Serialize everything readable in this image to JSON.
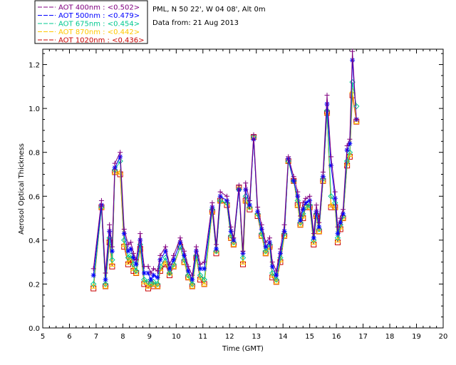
{
  "header": {
    "location": "PML, N 50 22', W 04 08', Alt 0m",
    "date": "Data from: 21 Aug 2013"
  },
  "chart_data": {
    "type": "line",
    "title": "",
    "xlabel": "Time (GMT)",
    "ylabel": "Aerosol Optical Thickness",
    "xlim": [
      5,
      20
    ],
    "ylim": [
      0.0,
      1.27
    ],
    "xticks": [
      "5",
      "6",
      "7",
      "8",
      "9",
      "10",
      "11",
      "12",
      "13",
      "14",
      "15",
      "16",
      "17",
      "18",
      "19",
      "20"
    ],
    "yticks": [
      "0.0",
      "0.2",
      "0.4",
      "0.6",
      "0.8",
      "1.0",
      "1.2"
    ],
    "legend_position": "top-left",
    "x": [
      6.9,
      7.2,
      7.35,
      7.5,
      7.6,
      7.7,
      7.9,
      8.05,
      8.2,
      8.3,
      8.4,
      8.5,
      8.65,
      8.8,
      8.95,
      9.05,
      9.15,
      9.3,
      9.4,
      9.6,
      9.75,
      9.9,
      10.15,
      10.3,
      10.45,
      10.6,
      10.75,
      10.9,
      11.05,
      11.35,
      11.5,
      11.65,
      11.9,
      12.05,
      12.15,
      12.35,
      12.5,
      12.6,
      12.75,
      12.9,
      13.05,
      13.2,
      13.35,
      13.5,
      13.6,
      13.75,
      13.9,
      14.05,
      14.2,
      14.4,
      14.55,
      14.65,
      14.75,
      14.85,
      15.0,
      15.15,
      15.25,
      15.35,
      15.5,
      15.65,
      15.8,
      15.95,
      16.05,
      16.15,
      16.25,
      16.4,
      16.5,
      16.6,
      16.75
    ],
    "series": [
      {
        "name": "AOT  400nm : <0.502>",
        "color": "#800080",
        "marker": "plus",
        "values": [
          0.27,
          0.58,
          0.25,
          0.47,
          0.37,
          0.75,
          0.8,
          0.45,
          0.38,
          0.39,
          0.34,
          0.31,
          0.43,
          0.28,
          0.28,
          0.25,
          0.27,
          0.26,
          0.33,
          0.37,
          0.29,
          0.33,
          0.41,
          0.35,
          0.28,
          0.24,
          0.37,
          0.29,
          0.3,
          0.57,
          0.38,
          0.62,
          0.6,
          0.46,
          0.41,
          0.65,
          0.35,
          0.66,
          0.58,
          0.88,
          0.55,
          0.47,
          0.39,
          0.41,
          0.3,
          0.26,
          0.36,
          0.47,
          0.78,
          0.69,
          0.62,
          0.51,
          0.57,
          0.59,
          0.6,
          0.43,
          0.56,
          0.48,
          0.71,
          1.06,
          0.78,
          0.62,
          0.46,
          0.5,
          0.54,
          0.83,
          0.86,
          1.26,
          0.95
        ]
      },
      {
        "name": "AOT  500nm : <0.479>",
        "color": "#0000ff",
        "marker": "asterisk",
        "values": [
          0.24,
          0.56,
          0.22,
          0.44,
          0.35,
          0.73,
          0.78,
          0.43,
          0.35,
          0.36,
          0.32,
          0.29,
          0.4,
          0.25,
          0.25,
          0.22,
          0.24,
          0.23,
          0.31,
          0.35,
          0.27,
          0.31,
          0.39,
          0.33,
          0.26,
          0.22,
          0.35,
          0.27,
          0.27,
          0.55,
          0.36,
          0.6,
          0.58,
          0.44,
          0.4,
          0.63,
          0.34,
          0.63,
          0.56,
          0.86,
          0.53,
          0.45,
          0.37,
          0.39,
          0.28,
          0.24,
          0.34,
          0.44,
          0.77,
          0.67,
          0.6,
          0.49,
          0.54,
          0.57,
          0.58,
          0.41,
          0.53,
          0.46,
          0.69,
          1.02,
          0.74,
          0.59,
          0.43,
          0.48,
          0.52,
          0.81,
          0.84,
          1.22,
          0.95
        ]
      },
      {
        "name": "AOT  675nm : <0.454>",
        "color": "#00c890",
        "marker": "diamond",
        "values": [
          0.2,
          0.55,
          0.2,
          0.41,
          0.31,
          0.72,
          0.76,
          0.4,
          0.32,
          0.33,
          0.29,
          0.26,
          0.38,
          0.22,
          0.21,
          0.2,
          0.21,
          0.2,
          0.28,
          0.32,
          0.25,
          0.29,
          0.37,
          0.31,
          0.24,
          0.2,
          0.33,
          0.24,
          0.22,
          0.54,
          0.35,
          0.58,
          0.57,
          0.42,
          0.39,
          0.63,
          0.32,
          0.6,
          0.55,
          0.87,
          0.52,
          0.43,
          0.35,
          0.38,
          0.25,
          0.22,
          0.32,
          0.43,
          0.76,
          0.67,
          0.58,
          0.48,
          0.52,
          0.55,
          0.56,
          0.4,
          0.52,
          0.45,
          0.68,
          0.99,
          0.6,
          0.57,
          0.41,
          0.47,
          0.51,
          0.76,
          0.8,
          1.12,
          1.01
        ]
      },
      {
        "name": "AOT  870nm : <0.442>",
        "color": "#ffc800",
        "marker": "triangle",
        "values": [
          0.19,
          0.55,
          0.19,
          0.4,
          0.29,
          0.71,
          0.71,
          0.38,
          0.3,
          0.32,
          0.27,
          0.25,
          0.37,
          0.21,
          0.19,
          0.2,
          0.2,
          0.19,
          0.27,
          0.3,
          0.25,
          0.28,
          0.37,
          0.3,
          0.23,
          0.19,
          0.32,
          0.23,
          0.2,
          0.53,
          0.35,
          0.58,
          0.57,
          0.41,
          0.38,
          0.64,
          0.3,
          0.58,
          0.55,
          0.87,
          0.52,
          0.42,
          0.34,
          0.37,
          0.24,
          0.21,
          0.31,
          0.42,
          0.76,
          0.67,
          0.56,
          0.47,
          0.51,
          0.55,
          0.55,
          0.39,
          0.51,
          0.44,
          0.67,
          0.98,
          0.56,
          0.55,
          0.4,
          0.46,
          0.5,
          0.75,
          0.79,
          1.08,
          0.94
        ]
      },
      {
        "name": "AOT 1020nm : <0.436>",
        "color": "#c80000",
        "marker": "square",
        "values": [
          0.18,
          0.55,
          0.19,
          0.39,
          0.28,
          0.71,
          0.7,
          0.37,
          0.29,
          0.31,
          0.26,
          0.25,
          0.36,
          0.2,
          0.18,
          0.2,
          0.19,
          0.19,
          0.26,
          0.29,
          0.24,
          0.28,
          0.37,
          0.3,
          0.23,
          0.19,
          0.32,
          0.22,
          0.2,
          0.53,
          0.34,
          0.58,
          0.56,
          0.41,
          0.38,
          0.64,
          0.29,
          0.58,
          0.54,
          0.87,
          0.51,
          0.42,
          0.34,
          0.37,
          0.23,
          0.21,
          0.3,
          0.42,
          0.76,
          0.67,
          0.56,
          0.47,
          0.5,
          0.55,
          0.55,
          0.38,
          0.51,
          0.44,
          0.67,
          0.98,
          0.55,
          0.55,
          0.39,
          0.45,
          0.5,
          0.74,
          0.78,
          1.06,
          0.94
        ]
      }
    ]
  }
}
